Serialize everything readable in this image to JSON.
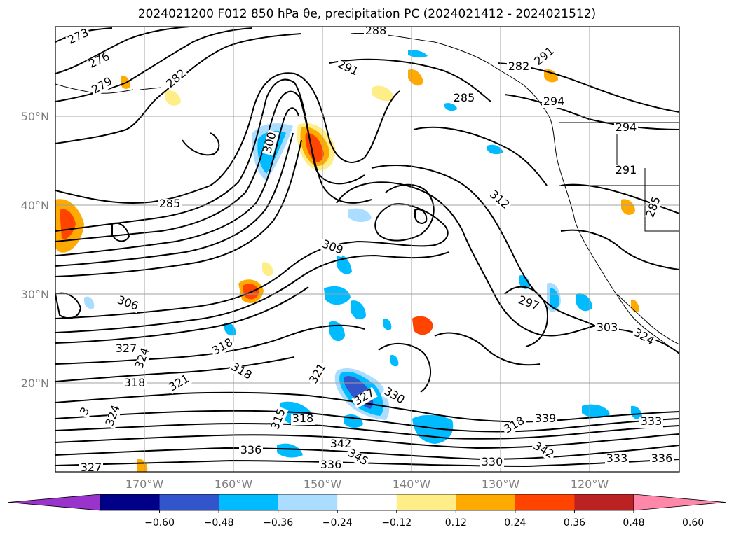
{
  "title": "2024021200 F012 850 hPa θe, precipitation PC (2024021412 - 2024021512)",
  "map": {
    "lat_ticks": [
      "50°N",
      "40°N",
      "30°N",
      "20°N"
    ],
    "lon_ticks": [
      "170°W",
      "160°W",
      "150°W",
      "140°W",
      "130°W",
      "120°W"
    ],
    "contour_labels": [
      "273",
      "276",
      "279",
      "282",
      "285",
      "288",
      "291",
      "285",
      "282",
      "291",
      "294",
      "294",
      "291",
      "285",
      "300",
      "312",
      "309",
      "306",
      "297",
      "303",
      "324",
      "327",
      "324",
      "318",
      "318",
      "318",
      "321",
      "321",
      "327",
      "330",
      "3",
      "324",
      "315",
      "318",
      "318",
      "339",
      "333",
      "342",
      "336",
      "345",
      "342",
      "336",
      "330",
      "333",
      "336",
      "327"
    ]
  },
  "colorbar": {
    "colors": [
      "#9933cc",
      "#000088",
      "#3355cc",
      "#00bbff",
      "#aaddff",
      "#ffffff",
      "#ffee88",
      "#ffaa00",
      "#ff4400",
      "#bb2222",
      "#ff88aa"
    ],
    "labels": [
      "−0.60",
      "−0.48",
      "−0.36",
      "−0.24",
      "−0.12",
      "0.12",
      "0.24",
      "0.36",
      "0.48",
      "0.60"
    ]
  }
}
